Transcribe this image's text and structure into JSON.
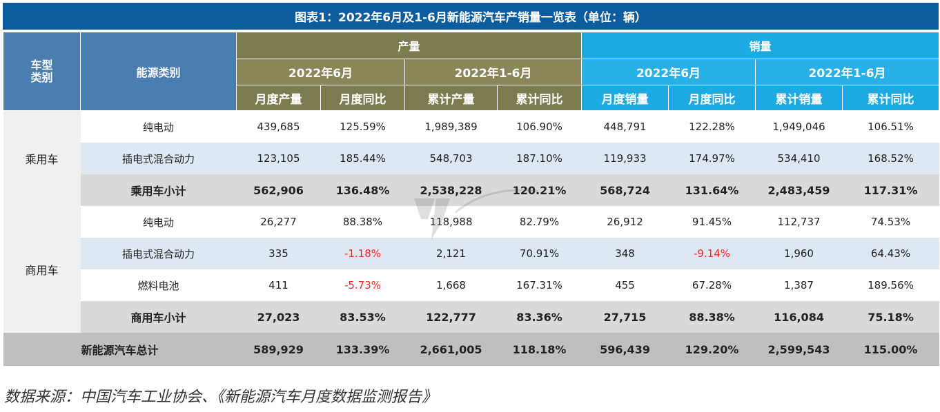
{
  "title": "图表1：2022年6月及1-6月新能源汽车产销量一览表（单位：辆）",
  "headers": {
    "vehicle_type": "车型\n类别",
    "energy_type": "能源类别",
    "production": "产量",
    "sales": "销量",
    "june": "2022年6月",
    "jan_jun": "2022年1-6月",
    "prod_cols": [
      "月度产量",
      "月度同比",
      "累计产量",
      "累计同比"
    ],
    "sales_cols": [
      "月度销量",
      "月度同比",
      "累计销量",
      "累计同比"
    ]
  },
  "groups": [
    {
      "name": "乘用车",
      "rows": [
        {
          "label": "纯电动",
          "values": [
            "439,685",
            "125.59%",
            "1,989,389",
            "106.90%",
            "448,791",
            "122.28%",
            "1,949,046",
            "106.51%"
          ]
        },
        {
          "label": "插电式混合动力",
          "values": [
            "123,105",
            "185.44%",
            "548,703",
            "187.10%",
            "119,933",
            "174.97%",
            "534,410",
            "168.52%"
          ]
        },
        {
          "label": "乘用车小计",
          "subtotal": true,
          "values": [
            "562,906",
            "136.48%",
            "2,538,228",
            "120.21%",
            "568,724",
            "131.64%",
            "2,483,459",
            "117.31%"
          ]
        }
      ]
    },
    {
      "name": "商用车",
      "rows": [
        {
          "label": "纯电动",
          "values": [
            "26,277",
            "88.38%",
            "118,988",
            "82.79%",
            "26,912",
            "91.45%",
            "112,737",
            "74.53%"
          ]
        },
        {
          "label": "插电式混合动力",
          "values": [
            "335",
            "-1.18%",
            "2,121",
            "70.91%",
            "348",
            "-9.14%",
            "1,960",
            "64.43%"
          ]
        },
        {
          "label": "燃料电池",
          "values": [
            "411",
            "-5.73%",
            "1,668",
            "167.31%",
            "455",
            "67.28%",
            "1,387",
            "189.56%"
          ]
        },
        {
          "label": "商用车小计",
          "subtotal": true,
          "values": [
            "27,023",
            "83.53%",
            "122,777",
            "83.36%",
            "27,715",
            "88.38%",
            "116,084",
            "75.18%"
          ]
        }
      ]
    }
  ],
  "total": {
    "label": "新能源汽车总计",
    "values": [
      "589,929",
      "133.39%",
      "2,661,005",
      "118.18%",
      "596,439",
      "129.20%",
      "2,599,543",
      "115.00%"
    ]
  },
  "source": "数据来源：中国汽车工业协会、《新能源汽车月度数据监测报告》",
  "colors": {
    "title_bg": "#0c5c9e",
    "header_blue": "#4a7eb1",
    "header_olive": "#7d7b50",
    "header_cyan": "#1da9e2",
    "negative": "#ff2020"
  }
}
